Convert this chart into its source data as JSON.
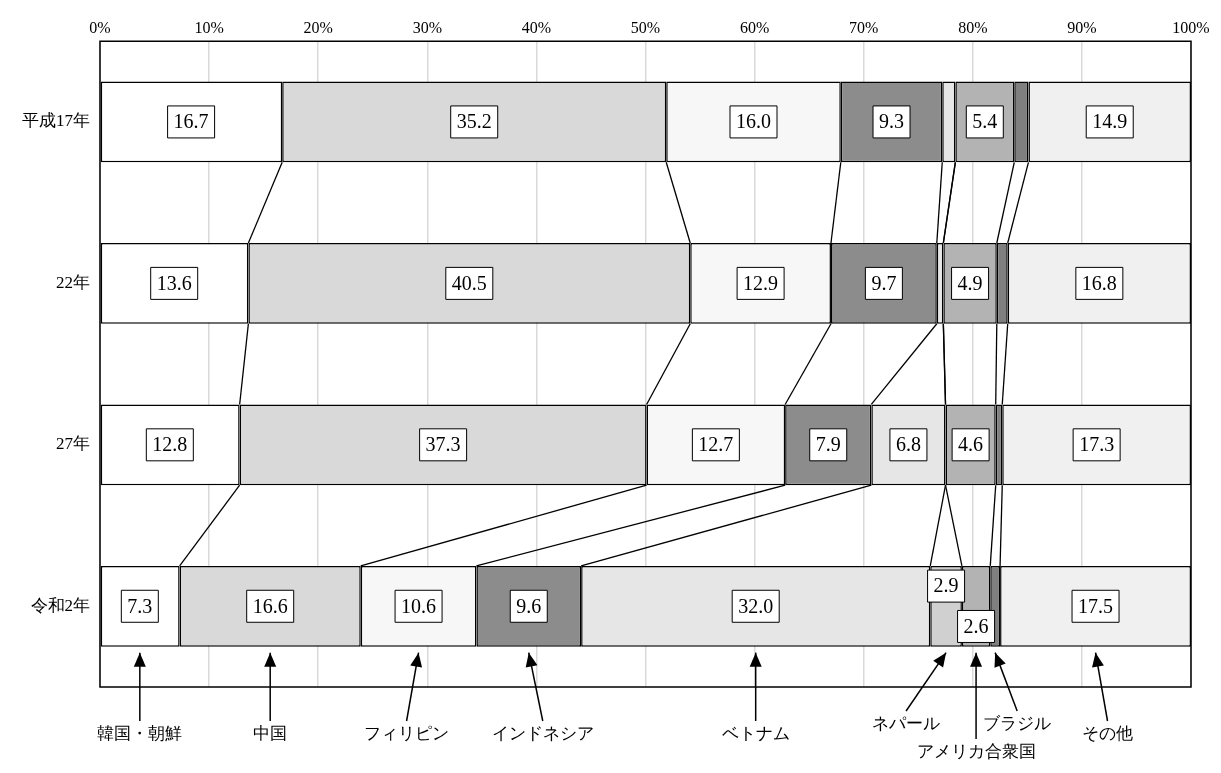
{
  "chart_data": {
    "type": "bar",
    "orientation": "horizontal",
    "stacked": true,
    "categories": [
      "平成17年",
      "22年",
      "27年",
      "令和2年"
    ],
    "xlim": [
      0,
      100
    ],
    "xticks": [
      {
        "value": 0,
        "label": "0%"
      },
      {
        "value": 10,
        "label": "10%"
      },
      {
        "value": 20,
        "label": "20%"
      },
      {
        "value": 30,
        "label": "30%"
      },
      {
        "value": 40,
        "label": "40%"
      },
      {
        "value": 50,
        "label": "50%"
      },
      {
        "value": 60,
        "label": "60%"
      },
      {
        "value": 70,
        "label": "70%"
      },
      {
        "value": 80,
        "label": "80%"
      },
      {
        "value": 90,
        "label": "90%"
      },
      {
        "value": 100,
        "label": "100%"
      }
    ],
    "grid": "x",
    "legend": "bottom",
    "series": [
      {
        "name": "韓国・朝鮮",
        "color": "#ffffff",
        "values": [
          16.7,
          13.6,
          12.8,
          7.3
        ],
        "value_labels": [
          "16.7",
          "13.6",
          "12.8",
          "7.3"
        ]
      },
      {
        "name": "中国",
        "color": "#d9d9d9",
        "values": [
          35.2,
          40.5,
          37.3,
          16.6
        ],
        "value_labels": [
          "35.2",
          "40.5",
          "37.3",
          "16.6"
        ]
      },
      {
        "name": "フィリピン",
        "color": "#f7f7f7",
        "values": [
          16.0,
          12.9,
          12.7,
          10.6
        ],
        "value_labels": [
          "16.0",
          "12.9",
          "12.7",
          "10.6"
        ]
      },
      {
        "name": "インドネシア",
        "color": "#8c8c8c",
        "values": [
          9.3,
          9.7,
          7.9,
          9.6
        ],
        "value_labels": [
          "9.3",
          "9.7",
          "7.9",
          "9.6"
        ]
      },
      {
        "name": "ベトナム",
        "color": "#e6e6e6",
        "values": [
          1.2,
          0.6,
          6.8,
          32.0
        ],
        "value_labels": [
          null,
          null,
          "6.8",
          "32.0"
        ]
      },
      {
        "name": "ネパール",
        "color": "#d0d0d0",
        "values": [
          null,
          null,
          null,
          2.9
        ],
        "value_labels": [
          null,
          null,
          null,
          "2.9"
        ]
      },
      {
        "name": "アメリカ合衆国",
        "color": "#b3b3b3",
        "values": [
          5.4,
          4.9,
          4.6,
          2.6
        ],
        "value_labels": [
          "5.4",
          "4.9",
          "4.6",
          "2.6"
        ]
      },
      {
        "name": "ブラジル",
        "color": "#7f7f7f",
        "values": [
          1.3,
          1.0,
          0.6,
          0.9
        ],
        "value_labels": [
          null,
          null,
          null,
          null
        ]
      },
      {
        "name": "その他",
        "color": "#f0f0f0",
        "values": [
          14.9,
          16.8,
          17.3,
          17.5
        ],
        "value_labels": [
          "14.9",
          "16.8",
          "17.3",
          "17.5"
        ]
      }
    ]
  }
}
